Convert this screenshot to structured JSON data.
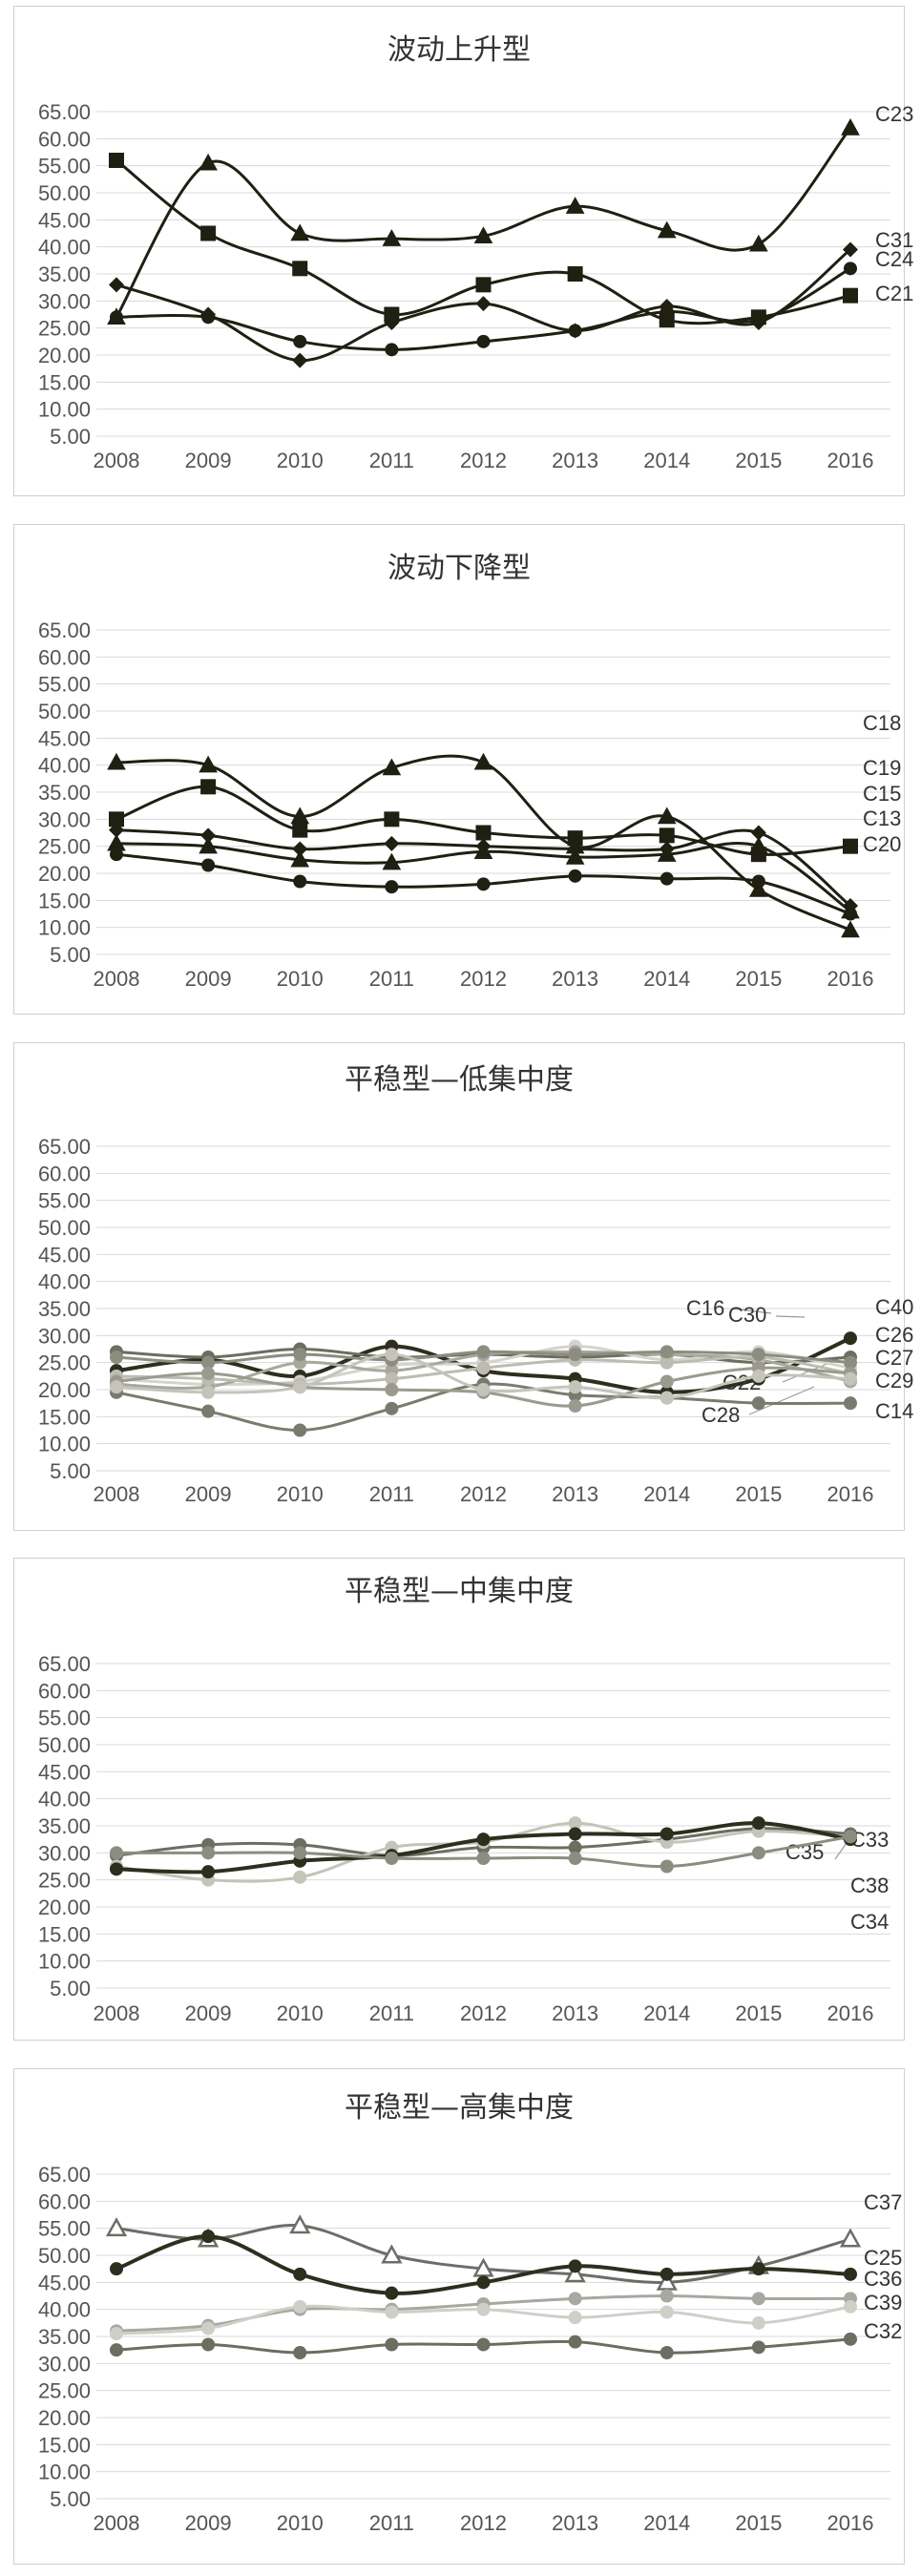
{
  "chart_data": [
    {
      "type": "line",
      "title": "波动上升型",
      "x": [
        "2008",
        "2009",
        "2010",
        "2011",
        "2012",
        "2013",
        "2014",
        "2015",
        "2016"
      ],
      "ylim": [
        5,
        65
      ],
      "yticks": [
        "5.00",
        "10.00",
        "15.00",
        "20.00",
        "25.00",
        "30.00",
        "35.00",
        "40.00",
        "45.00",
        "50.00",
        "55.00",
        "60.00",
        "65.00"
      ],
      "series": [
        {
          "name": "C23",
          "values": [
            27,
            55.5,
            42.5,
            41.5,
            42,
            47.5,
            43,
            40.5,
            62
          ],
          "marker": "triangle",
          "color": "#1f1f12",
          "width": 3
        },
        {
          "name": "C31",
          "values": [
            33,
            27.5,
            19,
            26,
            29.5,
            24.5,
            29,
            26,
            39.5
          ],
          "marker": "diamond",
          "color": "#1f1f12",
          "width": 3
        },
        {
          "name": "C24",
          "values": [
            27,
            27,
            22.5,
            21,
            22.5,
            24.5,
            28,
            26.5,
            36
          ],
          "marker": "circle",
          "color": "#1f1f12",
          "width": 3
        },
        {
          "name": "C21",
          "values": [
            56,
            42.5,
            36,
            27.5,
            33,
            35,
            26.5,
            27,
            31
          ],
          "marker": "square",
          "color": "#1f1f12",
          "width": 3
        }
      ]
    },
    {
      "type": "line",
      "title": "波动下降型",
      "x": [
        "2008",
        "2009",
        "2010",
        "2011",
        "2012",
        "2013",
        "2014",
        "2015",
        "2016"
      ],
      "ylim": [
        5,
        65
      ],
      "yticks": [
        "5.00",
        "10.00",
        "15.00",
        "20.00",
        "25.00",
        "30.00",
        "35.00",
        "40.00",
        "45.00",
        "50.00",
        "55.00",
        "60.00",
        "65.00"
      ],
      "series": [
        {
          "name": "C18",
          "values": [
            30,
            36,
            28,
            30,
            27.5,
            26.5,
            27,
            23.5,
            25
          ],
          "marker": "square",
          "color": "#1f1f12",
          "width": 3
        },
        {
          "name": "C19",
          "values": [
            40.5,
            40,
            30.5,
            39.5,
            40.5,
            25,
            30.5,
            17,
            9.5
          ],
          "marker": "triangle",
          "color": "#1f1f12",
          "width": 3
        },
        {
          "name": "C15",
          "values": [
            28,
            27,
            24.5,
            25.5,
            25,
            24.5,
            24.5,
            27.5,
            14
          ],
          "marker": "diamond",
          "color": "#1f1f12",
          "width": 3
        },
        {
          "name": "C13",
          "values": [
            23.5,
            21.5,
            18.5,
            17.5,
            18,
            19.5,
            19,
            18.5,
            12.5
          ],
          "marker": "circle",
          "color": "#1f1f12",
          "width": 3
        },
        {
          "name": "C20",
          "values": [
            25.5,
            25,
            22.5,
            22,
            24,
            23,
            23.5,
            25,
            13
          ],
          "marker": "triangle",
          "color": "#1f1f12",
          "width": 3
        }
      ]
    },
    {
      "type": "line",
      "title": "平稳型—低集中度",
      "x": [
        "2008",
        "2009",
        "2010",
        "2011",
        "2012",
        "2013",
        "2014",
        "2015",
        "2016"
      ],
      "ylim": [
        5,
        65
      ],
      "yticks": [
        "5.00",
        "10.00",
        "15.00",
        "20.00",
        "25.00",
        "30.00",
        "35.00",
        "40.00",
        "45.00",
        "50.00",
        "55.00",
        "60.00",
        "65.00"
      ],
      "series": [
        {
          "name": "C40",
          "values": [
            23.5,
            25.5,
            22.5,
            28,
            23.5,
            22,
            19.5,
            22,
            29.5
          ],
          "marker": "circle",
          "color": "#2e2e1e",
          "width": 4
        },
        {
          "name": "C26",
          "values": [
            27,
            26,
            27.5,
            26,
            26.5,
            26,
            26.5,
            25,
            26
          ],
          "marker": "circle",
          "color": "#6d6d60",
          "width": 3
        },
        {
          "name": "C27",
          "values": [
            22,
            21,
            21.5,
            24.5,
            25,
            28,
            25.5,
            27,
            24
          ],
          "marker": "circle",
          "color": "#d4d4cc",
          "width": 3
        },
        {
          "name": "C29",
          "values": [
            21,
            20.5,
            25,
            23.5,
            26.5,
            27,
            26.5,
            25.5,
            21.5
          ],
          "marker": "circle",
          "color": "#a8a89c",
          "width": 3
        },
        {
          "name": "C14",
          "values": [
            19.5,
            16,
            12.5,
            16.5,
            21,
            19,
            18.5,
            17.5,
            17.5
          ],
          "marker": "circle",
          "color": "#7a7a6e",
          "width": 3
        },
        {
          "name": "C16",
          "values": [
            22.5,
            22,
            21,
            22,
            24,
            25.5,
            25,
            26,
            23
          ],
          "marker": "circle",
          "color": "#bcbcb2",
          "width": 3
        },
        {
          "name": "C30",
          "values": [
            26,
            25,
            26.5,
            25.5,
            27,
            26.5,
            27,
            26.5,
            25
          ],
          "marker": "circle",
          "color": "#8c8c80",
          "width": 3
        },
        {
          "name": "C22",
          "values": [
            21.5,
            23,
            20.5,
            20,
            19.5,
            17,
            21.5,
            24,
            23
          ],
          "marker": "circle",
          "color": "#9a9a8e",
          "width": 3
        },
        {
          "name": "C28",
          "values": [
            20.5,
            19.5,
            20.5,
            26.5,
            20,
            20.5,
            18.5,
            22.5,
            22
          ],
          "marker": "circle",
          "color": "#c4c4ba",
          "width": 3
        }
      ]
    },
    {
      "type": "line",
      "title": "平稳型—中集中度",
      "x": [
        "2008",
        "2009",
        "2010",
        "2011",
        "2012",
        "2013",
        "2014",
        "2015",
        "2016"
      ],
      "ylim": [
        5,
        65
      ],
      "yticks": [
        "5.00",
        "10.00",
        "15.00",
        "20.00",
        "25.00",
        "30.00",
        "35.00",
        "40.00",
        "45.00",
        "50.00",
        "55.00",
        "60.00",
        "65.00"
      ],
      "series": [
        {
          "name": "C33",
          "values": [
            29.5,
            31.5,
            31.5,
            29.5,
            31,
            31,
            32.5,
            34.5,
            33.5
          ],
          "marker": "circle",
          "color": "#6d6d60",
          "width": 3
        },
        {
          "name": "C35",
          "values": [
            27.5,
            25,
            25.5,
            31,
            32,
            35.5,
            32,
            34,
            33
          ],
          "marker": "circle",
          "color": "#c4c4ba",
          "width": 3
        },
        {
          "name": "C38",
          "values": [
            27,
            26.5,
            28.5,
            29.5,
            32.5,
            33.5,
            33.5,
            35.5,
            32.5
          ],
          "marker": "circle",
          "color": "#2e2e1e",
          "width": 4
        },
        {
          "name": "C34",
          "values": [
            30,
            30,
            30,
            29,
            29,
            29,
            27.5,
            30,
            33
          ],
          "marker": "circle",
          "color": "#8c8c80",
          "width": 3
        }
      ]
    },
    {
      "type": "line",
      "title": "平稳型—高集中度",
      "x": [
        "2008",
        "2009",
        "2010",
        "2011",
        "2012",
        "2013",
        "2014",
        "2015",
        "2016"
      ],
      "ylim": [
        5,
        65
      ],
      "yticks": [
        "5.00",
        "10.00",
        "15.00",
        "20.00",
        "25.00",
        "30.00",
        "35.00",
        "40.00",
        "45.00",
        "50.00",
        "55.00",
        "60.00",
        "65.00"
      ],
      "series": [
        {
          "name": "C37",
          "values": [
            55,
            53,
            55.5,
            50,
            47.5,
            46.5,
            45,
            48,
            53
          ],
          "marker": "open-triangle",
          "color": "#6d6d68",
          "width": 3
        },
        {
          "name": "C25",
          "values": [
            47.5,
            53.5,
            46.5,
            43,
            45,
            48,
            46.5,
            47.5,
            46.5
          ],
          "marker": "circle",
          "color": "#2e2e1e",
          "width": 4
        },
        {
          "name": "C36",
          "values": [
            36,
            37,
            40,
            40,
            41,
            42,
            42.5,
            42,
            42
          ],
          "marker": "circle",
          "color": "#a8a8a0",
          "width": 3
        },
        {
          "name": "C39",
          "values": [
            35.5,
            36.5,
            40.5,
            39.5,
            40,
            38.5,
            39.5,
            37.5,
            40.5
          ],
          "marker": "circle",
          "color": "#cfcfc8",
          "width": 3
        },
        {
          "name": "C32",
          "values": [
            32.5,
            33.5,
            32,
            33.5,
            33.5,
            34,
            32,
            33,
            34.5
          ],
          "marker": "circle",
          "color": "#6d6d60",
          "width": 3
        }
      ]
    }
  ]
}
